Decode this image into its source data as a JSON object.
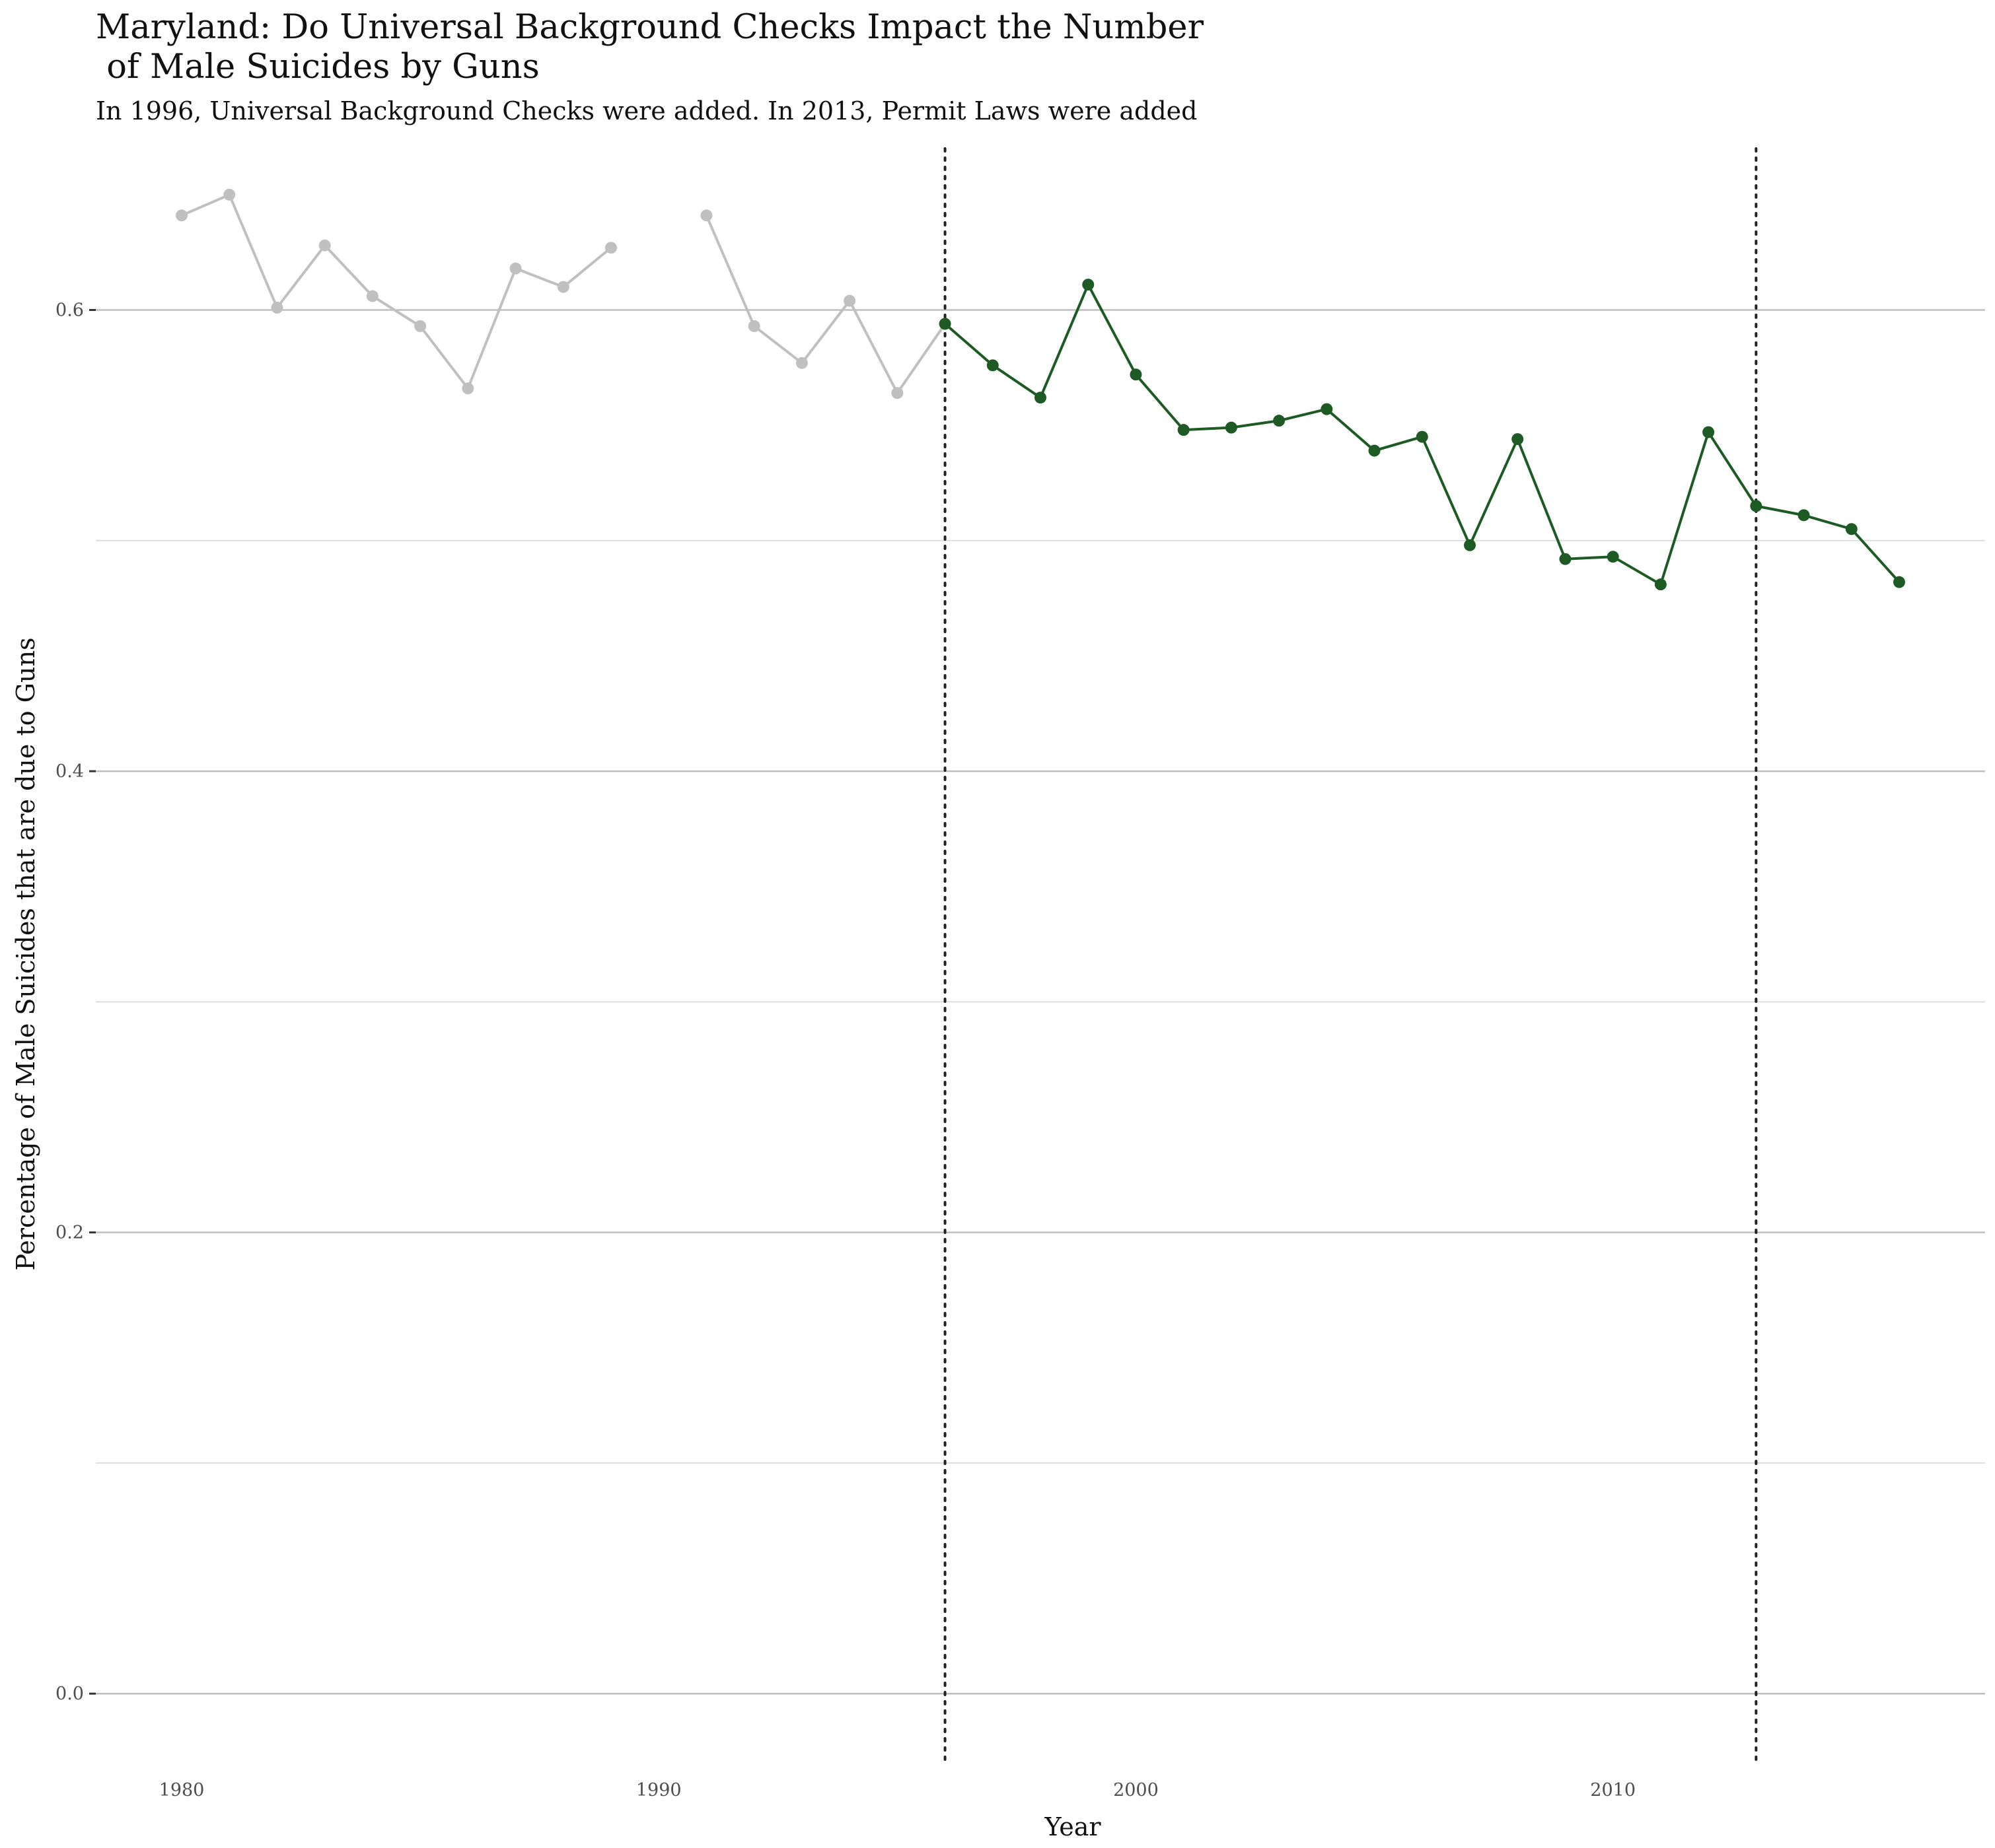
{
  "chart_data": {
    "type": "line",
    "title": "Maryland: Do Universal Background Checks Impact the Number\n of Male Suicides by Guns",
    "subtitle": "In 1996, Universal Background Checks were added. In 2013, Permit Laws were added",
    "xlabel": "Year",
    "ylabel": "Percentage of Male Suicides that are due to Guns",
    "xlim": [
      1978.2,
      2017.8
    ],
    "ylim": [
      -0.03,
      0.67
    ],
    "x_ticks": [
      1980,
      1990,
      2000,
      2010
    ],
    "x_tick_labels": [
      "1980",
      "1990",
      "2000",
      "2010"
    ],
    "y_ticks": [
      0.0,
      0.2,
      0.4,
      0.6
    ],
    "y_tick_labels": [
      "0.0",
      "0.2",
      "0.4",
      "0.6"
    ],
    "y_minor_gridlines": [
      0.1,
      0.3,
      0.5
    ],
    "grid": true,
    "legend": "none",
    "reference_lines": [
      {
        "x": 1996,
        "style": "dotted"
      },
      {
        "x": 2013,
        "style": "dotted"
      }
    ],
    "series": [
      {
        "color": "#c0c0c0",
        "segments": [
          [
            [
              1980,
              0.641
            ],
            [
              1981,
              0.65
            ],
            [
              1982,
              0.601
            ],
            [
              1983,
              0.628
            ],
            [
              1984,
              0.606
            ],
            [
              1985,
              0.593
            ],
            [
              1986,
              0.566
            ],
            [
              1987,
              0.618
            ],
            [
              1988,
              0.61
            ],
            [
              1989,
              0.627
            ]
          ],
          [
            [
              1991,
              0.641
            ],
            [
              1992,
              0.593
            ],
            [
              1993,
              0.577
            ],
            [
              1994,
              0.604
            ],
            [
              1995,
              0.564
            ],
            [
              1996,
              0.594
            ]
          ]
        ]
      },
      {
        "color": "#1e5a23",
        "segments": [
          [
            [
              1996,
              0.594
            ],
            [
              1997,
              0.576
            ],
            [
              1998,
              0.562
            ],
            [
              1999,
              0.611
            ],
            [
              2000,
              0.572
            ],
            [
              2001,
              0.548
            ],
            [
              2002,
              0.549
            ],
            [
              2003,
              0.552
            ],
            [
              2004,
              0.557
            ],
            [
              2005,
              0.539
            ],
            [
              2006,
              0.545
            ],
            [
              2007,
              0.498
            ],
            [
              2008,
              0.544
            ],
            [
              2009,
              0.492
            ],
            [
              2010,
              0.493
            ],
            [
              2011,
              0.481
            ],
            [
              2012,
              0.547
            ],
            [
              2013,
              0.515
            ],
            [
              2014,
              0.511
            ],
            [
              2015,
              0.505
            ],
            [
              2016,
              0.482
            ]
          ]
        ]
      }
    ]
  },
  "colors": {
    "major_grid": "#bebebe",
    "minor_grid": "#dedede",
    "tick_mark": "#333333",
    "reference_line": "#222222"
  }
}
